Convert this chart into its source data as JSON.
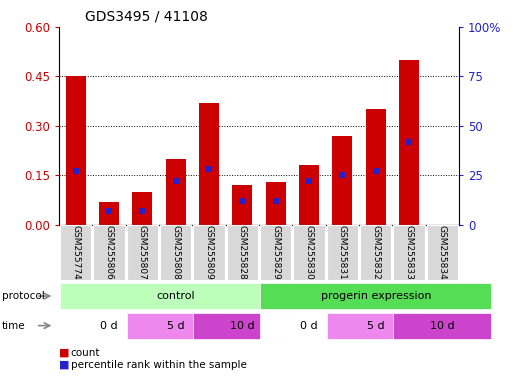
{
  "title": "GDS3495 / 41108",
  "samples": [
    "GSM255774",
    "GSM255806",
    "GSM255807",
    "GSM255808",
    "GSM255809",
    "GSM255828",
    "GSM255829",
    "GSM255830",
    "GSM255831",
    "GSM255832",
    "GSM255833",
    "GSM255834"
  ],
  "count_values": [
    0.45,
    0.07,
    0.1,
    0.2,
    0.37,
    0.12,
    0.13,
    0.18,
    0.27,
    0.35,
    0.5,
    0.0
  ],
  "percentile_values": [
    27,
    7,
    7,
    22,
    28,
    12,
    12,
    22,
    25,
    27,
    42,
    0
  ],
  "bar_color": "#cc0000",
  "blue_color": "#2222cc",
  "left_ylim": [
    0,
    0.6
  ],
  "right_ylim": [
    0,
    100
  ],
  "left_yticks": [
    0,
    0.15,
    0.3,
    0.45,
    0.6
  ],
  "right_yticks": [
    0,
    25,
    50,
    75,
    100
  ],
  "right_yticklabels": [
    "0",
    "25",
    "50",
    "75",
    "100%"
  ],
  "bg_color": "#ffffff",
  "protocol_groups": [
    {
      "text": "control",
      "start": 0,
      "end": 6,
      "color": "#bbffbb"
    },
    {
      "text": "progerin expression",
      "start": 6,
      "end": 12,
      "color": "#55dd55"
    }
  ],
  "time_groups": [
    {
      "text": "0 d",
      "start": 0,
      "end": 2,
      "color": "#ffffff"
    },
    {
      "text": "5 d",
      "start": 2,
      "end": 4,
      "color": "#ee88ee"
    },
    {
      "text": "10 d",
      "start": 4,
      "end": 6,
      "color": "#cc44cc"
    },
    {
      "text": "0 d",
      "start": 6,
      "end": 8,
      "color": "#ffffff"
    },
    {
      "text": "5 d",
      "start": 8,
      "end": 10,
      "color": "#ee88ee"
    },
    {
      "text": "10 d",
      "start": 10,
      "end": 12,
      "color": "#cc44cc"
    }
  ],
  "tick_label_color_left": "#cc0000",
  "tick_label_color_right": "#2222cc",
  "bar_width": 0.6
}
